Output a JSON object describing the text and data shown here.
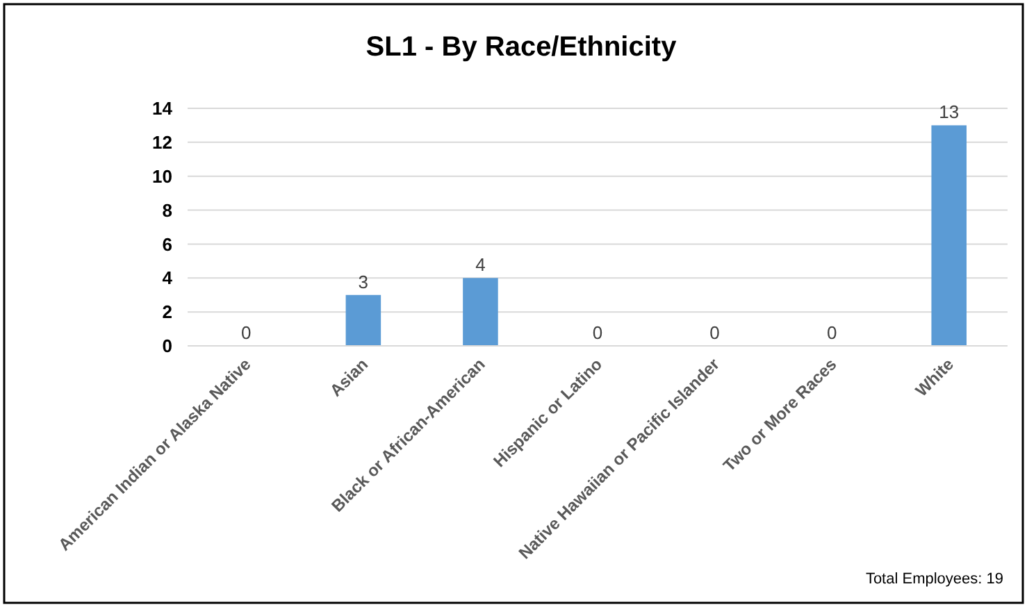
{
  "chart_data": {
    "type": "bar",
    "title": "SL1 - By Race/Ethnicity",
    "categories": [
      "American Indian or Alaska Native",
      "Asian",
      "Black or African-American",
      "Hispanic or Latino",
      "Native Hawaiian or Pacific Islander",
      "Two or More Races",
      "White"
    ],
    "values": [
      0,
      3,
      4,
      0,
      0,
      0,
      13
    ],
    "color": "#5b9bd5",
    "ylim": [
      0,
      14
    ],
    "yticks": [
      0,
      2,
      4,
      6,
      8,
      10,
      12,
      14
    ],
    "grid": "y",
    "data_labels": true,
    "annotations": [
      "Total Employees: 19"
    ]
  }
}
